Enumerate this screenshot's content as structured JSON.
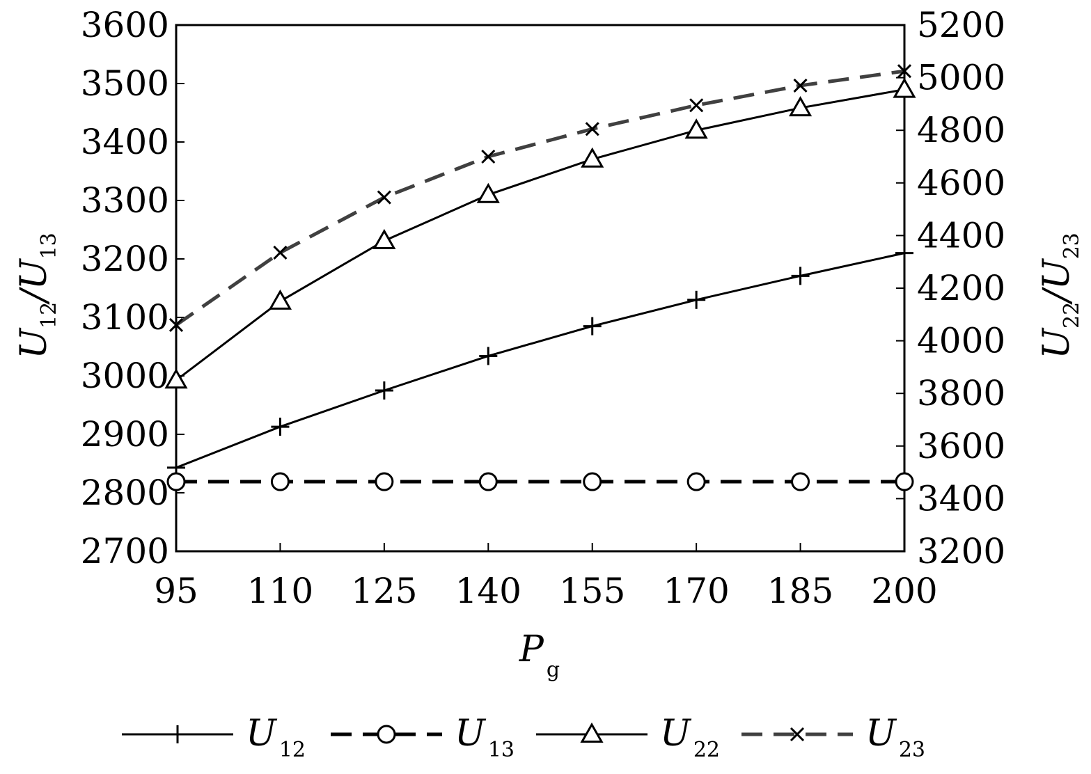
{
  "chart_data": {
    "type": "line",
    "x": [
      95,
      110,
      125,
      140,
      155,
      170,
      185,
      200
    ],
    "x_ticks": [
      "95",
      "110",
      "125",
      "140",
      "155",
      "170",
      "185",
      "200"
    ],
    "xlim": [
      95,
      200
    ],
    "xlabel": {
      "main": "P",
      "sub": "g"
    },
    "ylabel_left": {
      "main1": "U",
      "sub1": "12",
      "sep": "/",
      "main2": "U",
      "sub2": "13"
    },
    "ylabel_right": {
      "main1": "U",
      "sub1": "22",
      "sep": "/",
      "main2": "U",
      "sub2": "23"
    },
    "ylim_left": [
      2700,
      3600
    ],
    "ylim_right": [
      3200,
      5200
    ],
    "y_ticks_left": [
      "2700",
      "2800",
      "2900",
      "3000",
      "3100",
      "3200",
      "3300",
      "3400",
      "3500",
      "3600"
    ],
    "y_ticks_right": [
      "3200",
      "3400",
      "3600",
      "3800",
      "4000",
      "4200",
      "4400",
      "4600",
      "4800",
      "5000",
      "5200"
    ],
    "series": [
      {
        "name": "U12",
        "label_main": "U",
        "label_sub": "12",
        "axis": "left",
        "marker": "plus",
        "dash": "solid",
        "color": "#000000",
        "values": [
          2843,
          2913,
          2975,
          3034,
          3085,
          3130,
          3171,
          3210
        ]
      },
      {
        "name": "U13",
        "label_main": "U",
        "label_sub": "13",
        "axis": "left",
        "marker": "circle",
        "dash": "dashed",
        "color": "#000000",
        "values": [
          2819,
          2819,
          2819,
          2819,
          2819,
          2819,
          2819,
          2819
        ]
      },
      {
        "name": "U22",
        "label_main": "U",
        "label_sub": "22",
        "axis": "right",
        "marker": "triangle",
        "dash": "solid",
        "color": "#000000",
        "values": [
          3850,
          4150,
          4380,
          4555,
          4690,
          4800,
          4885,
          4955
        ]
      },
      {
        "name": "U23",
        "label_main": "U",
        "label_sub": "23",
        "axis": "right",
        "marker": "x",
        "dash": "dashed",
        "color": "#404040",
        "values": [
          4060,
          4335,
          4545,
          4700,
          4805,
          4895,
          4970,
          5025
        ]
      }
    ],
    "legend_position": "bottom",
    "grid": false
  }
}
